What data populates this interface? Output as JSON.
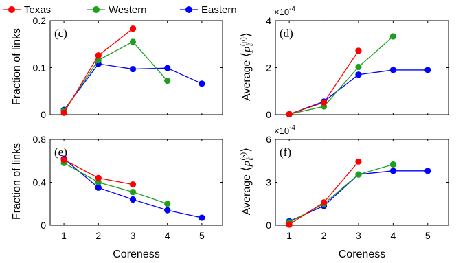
{
  "legend": [
    {
      "name": "Texas",
      "color": "#ff0000"
    },
    {
      "name": "Western",
      "color": "#1ea01e"
    },
    {
      "name": "Eastern",
      "color": "#0000ff"
    }
  ],
  "chart_data": [
    {
      "type": "line",
      "panel_label": "(c)",
      "ylabel": "Fraction of links",
      "xlabel": "",
      "xlim": [
        0.6,
        5.6
      ],
      "ylim": [
        0,
        0.2
      ],
      "xticks": [
        1,
        2,
        3,
        4,
        5
      ],
      "yticks": [
        0,
        0.1,
        0.2
      ],
      "ytick_labels": [
        "0",
        "0.1",
        "0.2"
      ],
      "multiplier": "",
      "series": [
        {
          "name": "Texas",
          "x": [
            1,
            2,
            3
          ],
          "y": [
            0.004,
            0.126,
            0.183
          ]
        },
        {
          "name": "Western",
          "x": [
            1,
            2,
            3,
            4
          ],
          "y": [
            0.008,
            0.116,
            0.155,
            0.072
          ]
        },
        {
          "name": "Eastern",
          "x": [
            1,
            2,
            3,
            4,
            5
          ],
          "y": [
            0.01,
            0.108,
            0.097,
            0.099,
            0.066
          ]
        }
      ]
    },
    {
      "type": "line",
      "panel_label": "(d)",
      "ylabel": "Average ⟨p_ℓ^(p)⟩",
      "xlabel": "",
      "xlim": [
        0.6,
        5.6
      ],
      "ylim": [
        0,
        4
      ],
      "xticks": [
        1,
        2,
        3,
        4,
        5
      ],
      "yticks": [
        0,
        2,
        4
      ],
      "ytick_labels": [
        "0",
        "2",
        "4"
      ],
      "multiplier": "×10",
      "multiplier_exp": "-4",
      "series": [
        {
          "name": "Texas",
          "x": [
            1,
            2,
            3
          ],
          "y": [
            0.02,
            0.52,
            2.72
          ]
        },
        {
          "name": "Western",
          "x": [
            1,
            2,
            3,
            4
          ],
          "y": [
            0.02,
            0.35,
            2.03,
            3.33
          ]
        },
        {
          "name": "Eastern",
          "x": [
            1,
            2,
            3,
            4,
            5
          ],
          "y": [
            0.02,
            0.56,
            1.7,
            1.9,
            1.9
          ]
        }
      ]
    },
    {
      "type": "line",
      "panel_label": "(e)",
      "ylabel": "Fraction of links",
      "xlabel": "Coreness",
      "xlim": [
        0.6,
        5.6
      ],
      "ylim": [
        0,
        0.8
      ],
      "xticks": [
        1,
        2,
        3,
        4,
        5
      ],
      "yticks": [
        0,
        0.4,
        0.8
      ],
      "ytick_labels": [
        "0",
        "0.4",
        "0.8"
      ],
      "multiplier": "",
      "series": [
        {
          "name": "Texas",
          "x": [
            1,
            2,
            3
          ],
          "y": [
            0.61,
            0.44,
            0.38
          ]
        },
        {
          "name": "Western",
          "x": [
            1,
            2,
            3,
            4
          ],
          "y": [
            0.58,
            0.4,
            0.31,
            0.2
          ]
        },
        {
          "name": "Eastern",
          "x": [
            1,
            2,
            3,
            4,
            5
          ],
          "y": [
            0.62,
            0.35,
            0.24,
            0.14,
            0.07
          ]
        }
      ]
    },
    {
      "type": "line",
      "panel_label": "(f)",
      "ylabel": "Average ⟨p_ℓ^(s)⟩",
      "xlabel": "Coreness",
      "xlim": [
        0.6,
        5.6
      ],
      "ylim": [
        0,
        6
      ],
      "xticks": [
        1,
        2,
        3,
        4,
        5
      ],
      "yticks": [
        0,
        3,
        6
      ],
      "ytick_labels": [
        "0",
        "3",
        "6"
      ],
      "multiplier": "×10",
      "multiplier_exp": "-4",
      "series": [
        {
          "name": "Texas",
          "x": [
            1,
            2,
            3
          ],
          "y": [
            0.05,
            1.6,
            4.45
          ]
        },
        {
          "name": "Western",
          "x": [
            1,
            2,
            3,
            4
          ],
          "y": [
            0.2,
            1.5,
            3.55,
            4.25
          ]
        },
        {
          "name": "Eastern",
          "x": [
            1,
            2,
            3,
            4,
            5
          ],
          "y": [
            0.28,
            1.35,
            3.55,
            3.8,
            3.8
          ]
        }
      ]
    }
  ]
}
